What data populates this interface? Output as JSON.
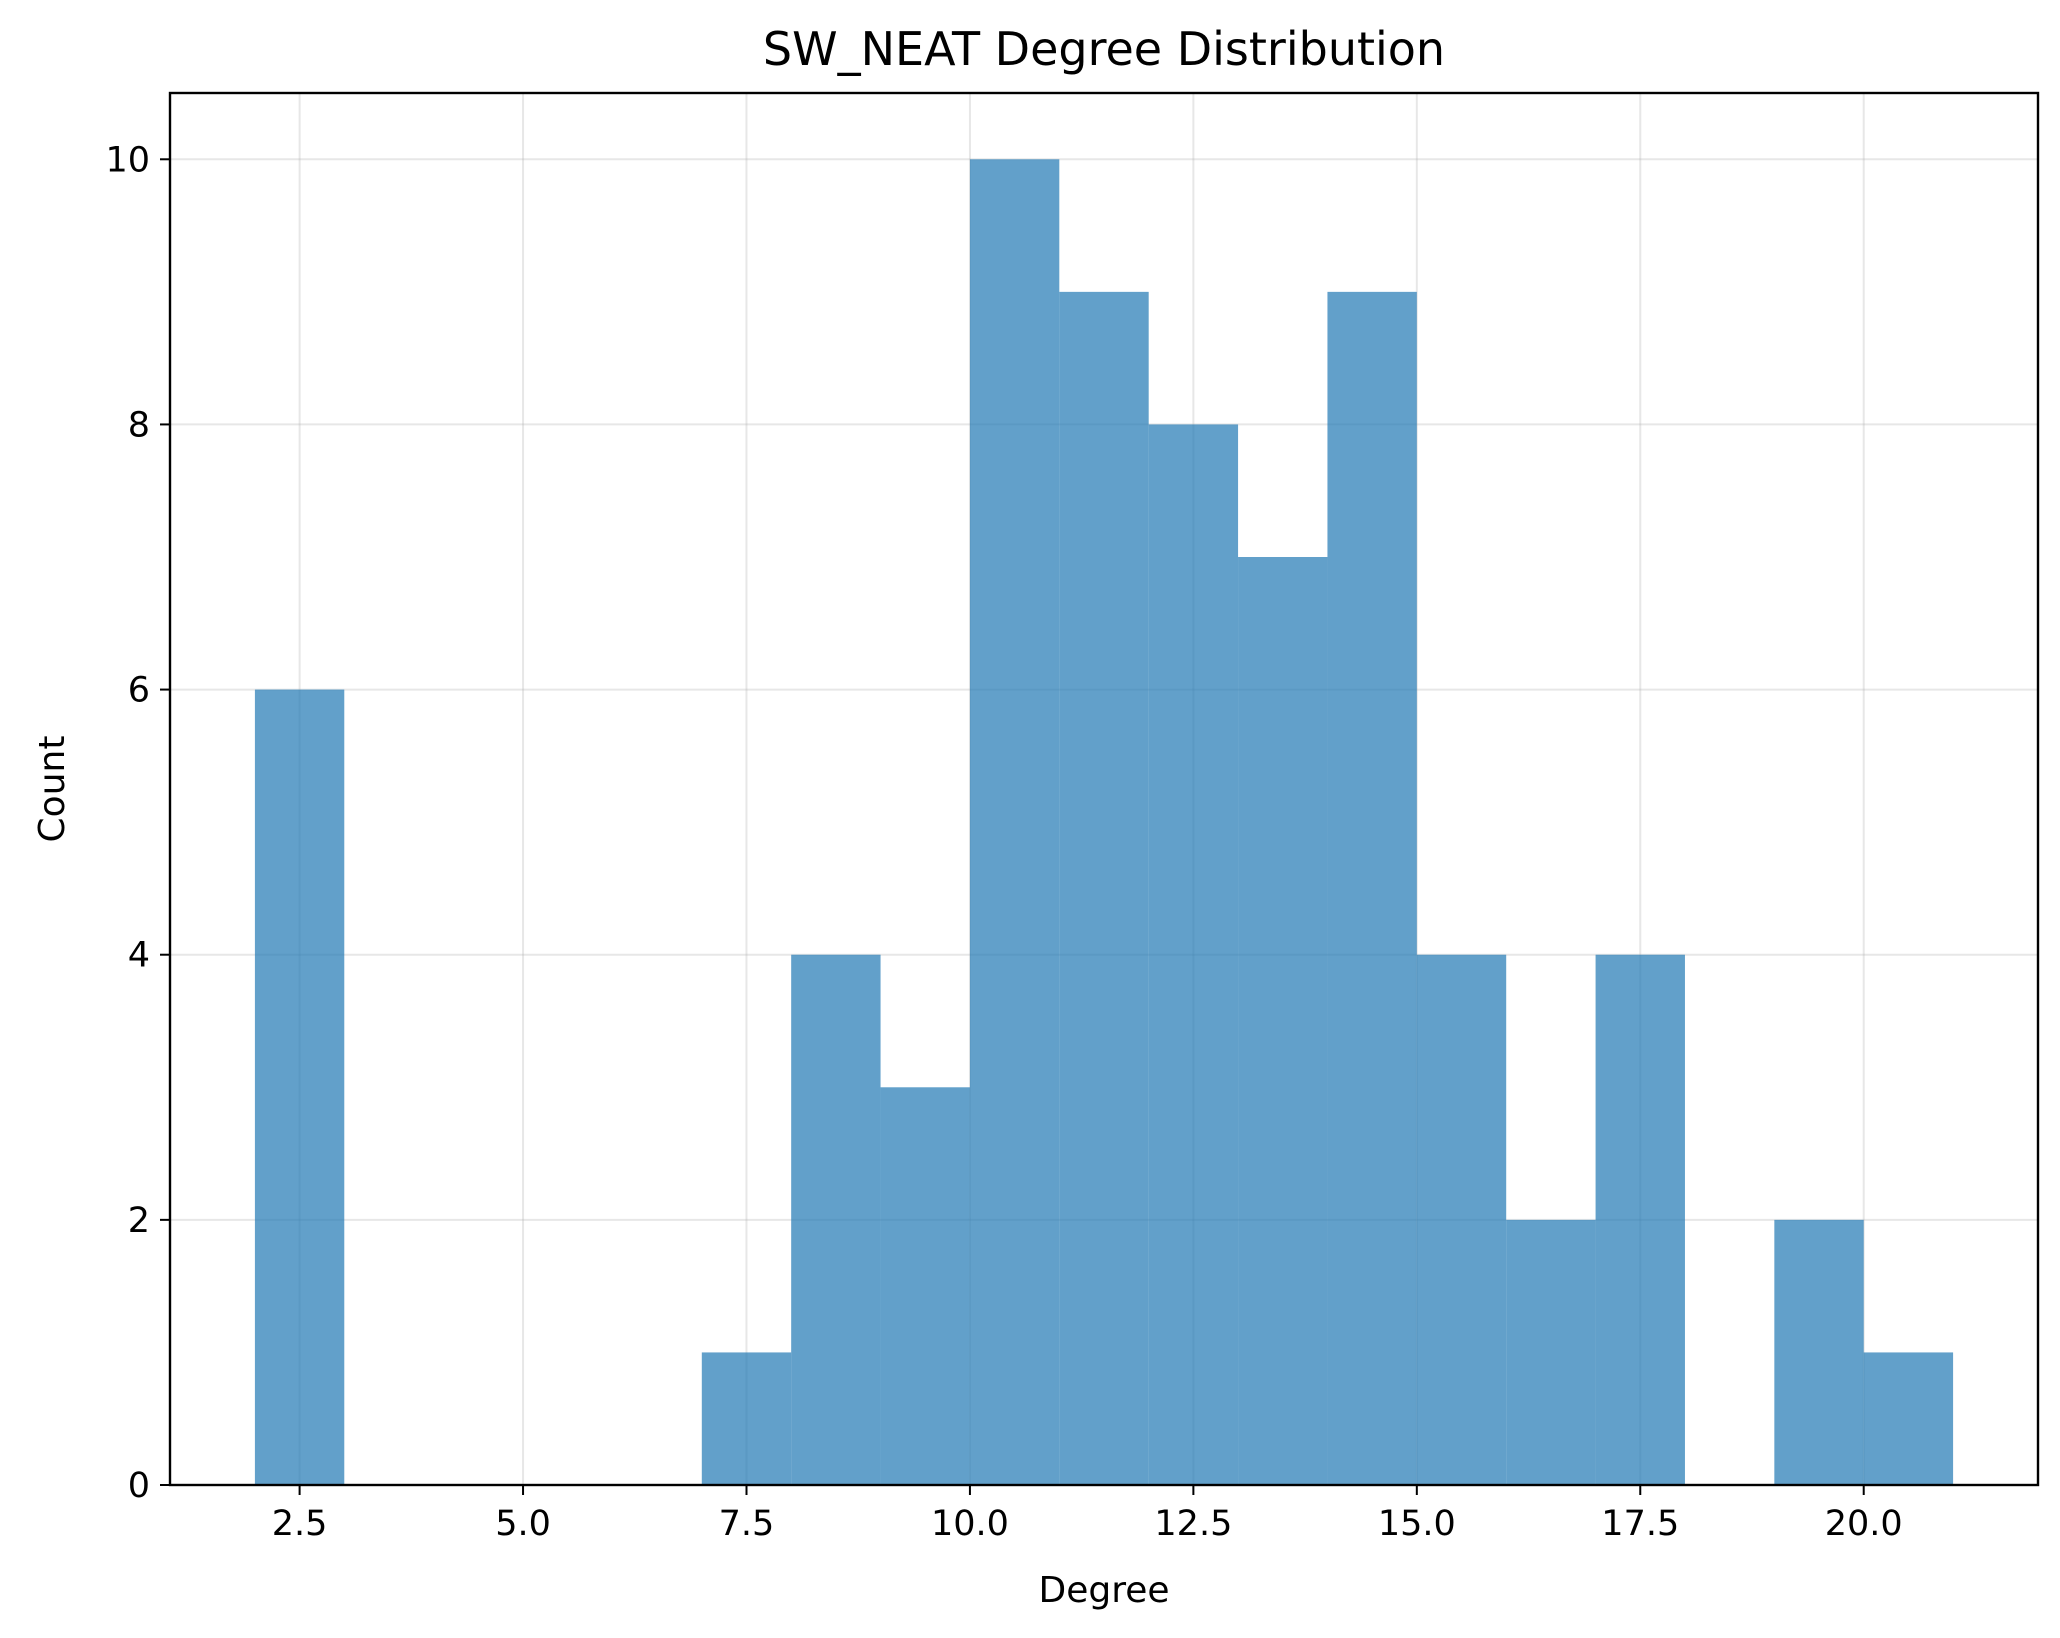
{
  "chart_data": {
    "type": "bar",
    "title": "SW_NEAT Degree Distribution",
    "xlabel": "Degree",
    "ylabel": "Count",
    "xlim": [
      1.05,
      21.95
    ],
    "ylim": [
      0,
      10.5
    ],
    "xticks": [
      2.5,
      5.0,
      7.5,
      10.0,
      12.5,
      15.0,
      17.5,
      20.0
    ],
    "xtick_labels": [
      "2.5",
      "5.0",
      "7.5",
      "10.0",
      "12.5",
      "15.0",
      "17.5",
      "20.0"
    ],
    "yticks": [
      0,
      2,
      4,
      6,
      8,
      10
    ],
    "ytick_labels": [
      "0",
      "2",
      "4",
      "6",
      "8",
      "10"
    ],
    "grid": true,
    "legend": "none",
    "bar_color": "#1f77b4",
    "bar_alpha": 0.7,
    "bins": [
      {
        "x0": 2,
        "x1": 3,
        "count": 6
      },
      {
        "x0": 7,
        "x1": 8,
        "count": 1
      },
      {
        "x0": 8,
        "x1": 9,
        "count": 4
      },
      {
        "x0": 9,
        "x1": 10,
        "count": 3
      },
      {
        "x0": 10,
        "x1": 11,
        "count": 10
      },
      {
        "x0": 11,
        "x1": 12,
        "count": 9
      },
      {
        "x0": 12,
        "x1": 13,
        "count": 8
      },
      {
        "x0": 13,
        "x1": 14,
        "count": 7
      },
      {
        "x0": 14,
        "x1": 15,
        "count": 9
      },
      {
        "x0": 15,
        "x1": 16,
        "count": 4
      },
      {
        "x0": 16,
        "x1": 17,
        "count": 2
      },
      {
        "x0": 17,
        "x1": 18,
        "count": 4
      },
      {
        "x0": 19,
        "x1": 20,
        "count": 2
      },
      {
        "x0": 20,
        "x1": 21,
        "count": 1
      }
    ]
  }
}
